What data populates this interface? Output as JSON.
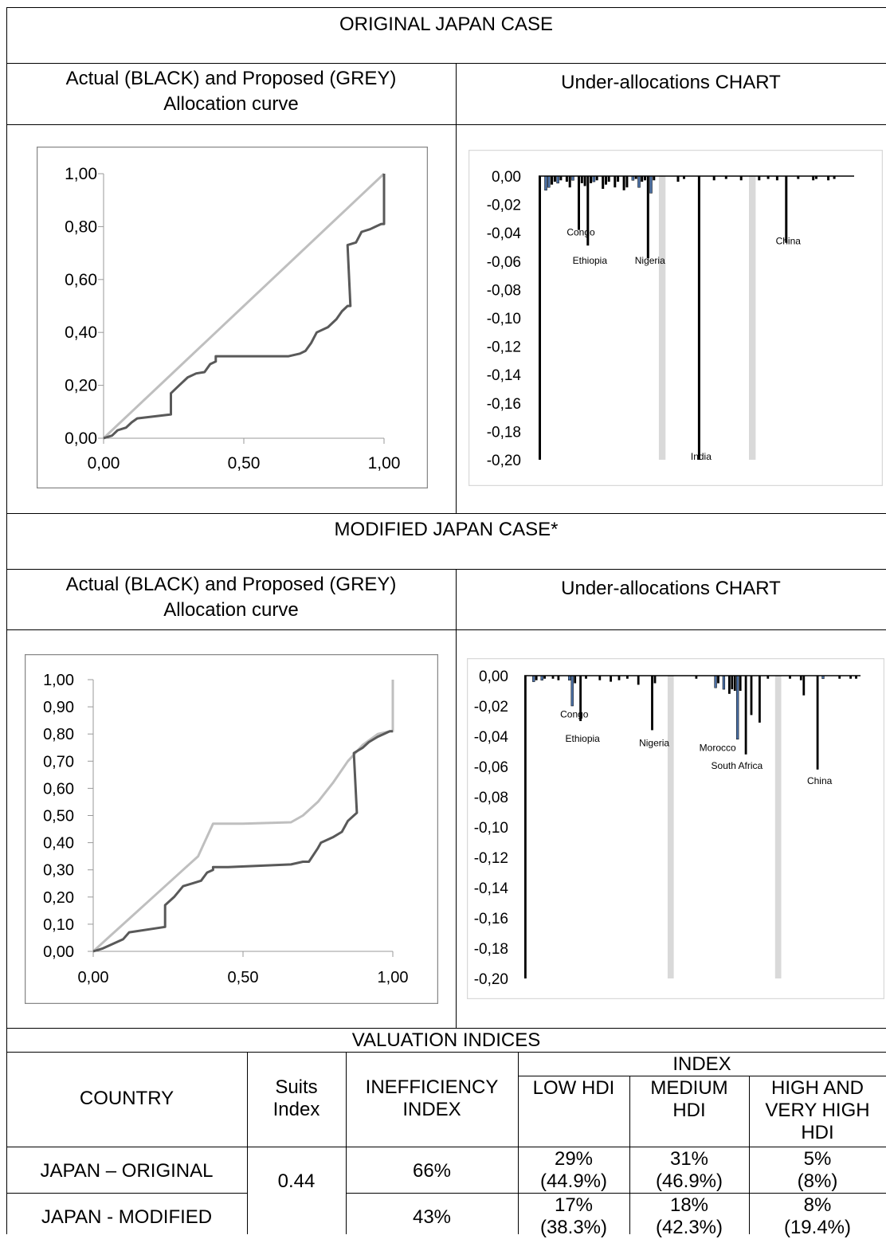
{
  "sections": {
    "original_title": "ORIGINAL JAPAN CASE",
    "modified_title": "MODIFIED JAPAN CASE*",
    "curve_header_line1": "Actual (BLACK) and Proposed (GREY)",
    "curve_header_line2": "Allocation curve",
    "under_header": "Under-allocations CHART",
    "valuation_title": "VALUATION INDICES"
  },
  "colors": {
    "actual": "#595959",
    "proposed": "#bfbfbf",
    "bar_black": "#000000",
    "bar_blue": "#4a6fa5",
    "bar_grey": "#d9d9d9"
  },
  "chart_data": [
    {
      "id": "orig_curve",
      "type": "line",
      "title": "",
      "xlim": [
        0,
        1
      ],
      "ylim": [
        0,
        1
      ],
      "xticks": [
        "0,00",
        "0,50",
        "1,00"
      ],
      "yticks": [
        "0,00",
        "0,20",
        "0,40",
        "0,60",
        "0,80",
        "1,00"
      ],
      "series": [
        {
          "name": "Proposed (GREY)",
          "color": "#bfbfbf",
          "points": [
            [
              0,
              0
            ],
            [
              0.05,
              0.05
            ],
            [
              0.1,
              0.1
            ],
            [
              0.2,
              0.2
            ],
            [
              0.3,
              0.3
            ],
            [
              0.4,
              0.4
            ],
            [
              0.5,
              0.5
            ],
            [
              0.6,
              0.6
            ],
            [
              0.7,
              0.7
            ],
            [
              0.8,
              0.8
            ],
            [
              0.9,
              0.9
            ],
            [
              1,
              1
            ]
          ]
        },
        {
          "name": "Actual (BLACK)",
          "color": "#595959",
          "points": [
            [
              0,
              0
            ],
            [
              0.03,
              0.01
            ],
            [
              0.05,
              0.03
            ],
            [
              0.08,
              0.04
            ],
            [
              0.1,
              0.06
            ],
            [
              0.12,
              0.075
            ],
            [
              0.24,
              0.09
            ],
            [
              0.24,
              0.17
            ],
            [
              0.27,
              0.2
            ],
            [
              0.3,
              0.23
            ],
            [
              0.33,
              0.245
            ],
            [
              0.36,
              0.25
            ],
            [
              0.38,
              0.28
            ],
            [
              0.4,
              0.29
            ],
            [
              0.4,
              0.31
            ],
            [
              0.45,
              0.31
            ],
            [
              0.66,
              0.31
            ],
            [
              0.7,
              0.32
            ],
            [
              0.72,
              0.33
            ],
            [
              0.74,
              0.36
            ],
            [
              0.75,
              0.38
            ],
            [
              0.76,
              0.4
            ],
            [
              0.8,
              0.42
            ],
            [
              0.83,
              0.45
            ],
            [
              0.85,
              0.48
            ],
            [
              0.87,
              0.5
            ],
            [
              0.88,
              0.5
            ],
            [
              0.87,
              0.73
            ],
            [
              0.9,
              0.74
            ],
            [
              0.92,
              0.78
            ],
            [
              0.95,
              0.79
            ],
            [
              0.97,
              0.8
            ],
            [
              0.99,
              0.81
            ],
            [
              1,
              0.81
            ],
            [
              1,
              1
            ]
          ]
        }
      ]
    },
    {
      "id": "orig_bars",
      "type": "bar",
      "title": "",
      "ylim": [
        -0.2,
        0
      ],
      "yticks": [
        "0,00",
        "-0,02",
        "-0,04",
        "-0,06",
        "-0,08",
        "-0,10",
        "-0,12",
        "-0,14",
        "-0,16",
        "-0,18",
        "-0,20"
      ],
      "n_bars": 105,
      "bars": [
        {
          "i": 0,
          "v": -0.2,
          "c": "black"
        },
        {
          "i": 2,
          "v": -0.01,
          "c": "blue"
        },
        {
          "i": 3,
          "v": -0.008,
          "c": "blue"
        },
        {
          "i": 4,
          "v": -0.006,
          "c": "black"
        },
        {
          "i": 5,
          "v": -0.004,
          "c": "black"
        },
        {
          "i": 6,
          "v": -0.005,
          "c": "blue"
        },
        {
          "i": 7,
          "v": -0.003,
          "c": "black"
        },
        {
          "i": 9,
          "v": -0.004,
          "c": "black"
        },
        {
          "i": 10,
          "v": -0.008,
          "c": "black"
        },
        {
          "i": 11,
          "v": -0.003,
          "c": "blue"
        },
        {
          "i": 13,
          "v": -0.038,
          "c": "black"
        },
        {
          "i": 14,
          "v": -0.005,
          "c": "black"
        },
        {
          "i": 15,
          "v": -0.007,
          "c": "black"
        },
        {
          "i": 16,
          "v": -0.049,
          "c": "black"
        },
        {
          "i": 17,
          "v": -0.005,
          "c": "black"
        },
        {
          "i": 18,
          "v": -0.004,
          "c": "blue"
        },
        {
          "i": 19,
          "v": -0.003,
          "c": "black"
        },
        {
          "i": 21,
          "v": -0.009,
          "c": "black"
        },
        {
          "i": 22,
          "v": -0.006,
          "c": "black"
        },
        {
          "i": 23,
          "v": -0.004,
          "c": "black"
        },
        {
          "i": 25,
          "v": -0.008,
          "c": "black"
        },
        {
          "i": 26,
          "v": -0.004,
          "c": "black"
        },
        {
          "i": 28,
          "v": -0.01,
          "c": "black"
        },
        {
          "i": 29,
          "v": -0.008,
          "c": "black"
        },
        {
          "i": 31,
          "v": -0.003,
          "c": "blue"
        },
        {
          "i": 32,
          "v": -0.002,
          "c": "black"
        },
        {
          "i": 33,
          "v": -0.008,
          "c": "blue"
        },
        {
          "i": 34,
          "v": -0.004,
          "c": "black"
        },
        {
          "i": 35,
          "v": -0.003,
          "c": "black"
        },
        {
          "i": 36,
          "v": -0.058,
          "c": "black"
        },
        {
          "i": 37,
          "v": -0.012,
          "c": "blue"
        },
        {
          "i": 38,
          "v": -0.003,
          "c": "black"
        },
        {
          "i": 40,
          "v": -0.2,
          "c": "grey"
        },
        {
          "i": 46,
          "v": -0.004,
          "c": "black"
        },
        {
          "i": 48,
          "v": -0.002,
          "c": "black"
        },
        {
          "i": 53,
          "v": -0.2,
          "c": "black"
        },
        {
          "i": 58,
          "v": -0.003,
          "c": "black"
        },
        {
          "i": 62,
          "v": -0.002,
          "c": "black"
        },
        {
          "i": 67,
          "v": -0.003,
          "c": "black"
        },
        {
          "i": 70,
          "v": -0.2,
          "c": "grey"
        },
        {
          "i": 73,
          "v": -0.003,
          "c": "black"
        },
        {
          "i": 76,
          "v": -0.002,
          "c": "black"
        },
        {
          "i": 79,
          "v": -0.003,
          "c": "black"
        },
        {
          "i": 82,
          "v": -0.047,
          "c": "black"
        },
        {
          "i": 86,
          "v": -0.002,
          "c": "black"
        },
        {
          "i": 91,
          "v": -0.003,
          "c": "black"
        },
        {
          "i": 92,
          "v": -0.002,
          "c": "black"
        },
        {
          "i": 96,
          "v": -0.003,
          "c": "black"
        },
        {
          "i": 98,
          "v": -0.002,
          "c": "black"
        }
      ],
      "labels": [
        {
          "text": "Congo",
          "i": 13,
          "v": -0.038
        },
        {
          "text": "Ethiopia",
          "i": 16,
          "v": -0.058
        },
        {
          "text": "Nigeria",
          "i": 36,
          "v": -0.058
        },
        {
          "text": "India",
          "i": 53,
          "v": -0.196
        },
        {
          "text": "China",
          "i": 82,
          "v": -0.044
        }
      ]
    },
    {
      "id": "mod_curve",
      "type": "line",
      "title": "",
      "xlim": [
        0,
        1
      ],
      "ylim": [
        0,
        1
      ],
      "xticks": [
        "0,00",
        "0,50",
        "1,00"
      ],
      "yticks": [
        "0,00",
        "0,10",
        "0,20",
        "0,30",
        "0,40",
        "0,50",
        "0,60",
        "0,70",
        "0,80",
        "0,90",
        "1,00"
      ],
      "series": [
        {
          "name": "Proposed (GREY)",
          "color": "#bfbfbf",
          "points": [
            [
              0,
              0
            ],
            [
              0.05,
              0.05
            ],
            [
              0.1,
              0.1
            ],
            [
              0.2,
              0.2
            ],
            [
              0.3,
              0.3
            ],
            [
              0.35,
              0.35
            ],
            [
              0.4,
              0.47
            ],
            [
              0.5,
              0.47
            ],
            [
              0.66,
              0.475
            ],
            [
              0.7,
              0.5
            ],
            [
              0.75,
              0.55
            ],
            [
              0.8,
              0.62
            ],
            [
              0.85,
              0.7
            ],
            [
              0.9,
              0.76
            ],
            [
              0.95,
              0.8
            ],
            [
              0.99,
              0.81
            ],
            [
              1,
              0.81
            ],
            [
              1,
              1
            ]
          ]
        },
        {
          "name": "Actual (BLACK)",
          "color": "#595959",
          "points": [
            [
              0,
              0
            ],
            [
              0.03,
              0.01
            ],
            [
              0.05,
              0.02
            ],
            [
              0.08,
              0.035
            ],
            [
              0.1,
              0.045
            ],
            [
              0.12,
              0.07
            ],
            [
              0.24,
              0.09
            ],
            [
              0.24,
              0.17
            ],
            [
              0.27,
              0.2
            ],
            [
              0.3,
              0.24
            ],
            [
              0.33,
              0.25
            ],
            [
              0.36,
              0.26
            ],
            [
              0.38,
              0.29
            ],
            [
              0.4,
              0.3
            ],
            [
              0.4,
              0.31
            ],
            [
              0.45,
              0.31
            ],
            [
              0.66,
              0.32
            ],
            [
              0.7,
              0.33
            ],
            [
              0.72,
              0.33
            ],
            [
              0.75,
              0.38
            ],
            [
              0.76,
              0.4
            ],
            [
              0.8,
              0.42
            ],
            [
              0.83,
              0.44
            ],
            [
              0.85,
              0.48
            ],
            [
              0.87,
              0.5
            ],
            [
              0.88,
              0.51
            ],
            [
              0.87,
              0.73
            ],
            [
              0.9,
              0.75
            ],
            [
              0.92,
              0.77
            ],
            [
              0.95,
              0.79
            ],
            [
              0.97,
              0.8
            ],
            [
              0.99,
              0.81
            ],
            [
              1,
              0.81
            ]
          ]
        }
      ]
    },
    {
      "id": "mod_bars",
      "type": "bar",
      "title": "",
      "ylim": [
        -0.2,
        0
      ],
      "yticks": [
        "0,00",
        "-0,02",
        "-0,04",
        "-0,06",
        "-0,08",
        "-0,10",
        "-0,12",
        "-0,14",
        "-0,16",
        "-0,18",
        "-0,20"
      ],
      "n_bars": 122,
      "bars": [
        {
          "i": 0,
          "v": -0.2,
          "c": "black"
        },
        {
          "i": 3,
          "v": -0.004,
          "c": "blue"
        },
        {
          "i": 4,
          "v": -0.003,
          "c": "black"
        },
        {
          "i": 6,
          "v": -0.003,
          "c": "blue"
        },
        {
          "i": 7,
          "v": -0.002,
          "c": "black"
        },
        {
          "i": 10,
          "v": -0.002,
          "c": "black"
        },
        {
          "i": 12,
          "v": -0.003,
          "c": "black"
        },
        {
          "i": 16,
          "v": -0.003,
          "c": "blue"
        },
        {
          "i": 17,
          "v": -0.02,
          "c": "blue"
        },
        {
          "i": 18,
          "v": -0.005,
          "c": "black"
        },
        {
          "i": 20,
          "v": -0.03,
          "c": "black"
        },
        {
          "i": 22,
          "v": -0.002,
          "c": "black"
        },
        {
          "i": 27,
          "v": -0.003,
          "c": "black"
        },
        {
          "i": 31,
          "v": -0.004,
          "c": "black"
        },
        {
          "i": 34,
          "v": -0.003,
          "c": "black"
        },
        {
          "i": 37,
          "v": -0.002,
          "c": "black"
        },
        {
          "i": 41,
          "v": -0.006,
          "c": "black"
        },
        {
          "i": 46,
          "v": -0.036,
          "c": "black"
        },
        {
          "i": 47,
          "v": -0.005,
          "c": "black"
        },
        {
          "i": 52,
          "v": -0.2,
          "c": "grey"
        },
        {
          "i": 62,
          "v": -0.002,
          "c": "black"
        },
        {
          "i": 69,
          "v": -0.008,
          "c": "blue"
        },
        {
          "i": 70,
          "v": -0.005,
          "c": "black"
        },
        {
          "i": 72,
          "v": -0.009,
          "c": "blue"
        },
        {
          "i": 74,
          "v": -0.012,
          "c": "black"
        },
        {
          "i": 75,
          "v": -0.009,
          "c": "black"
        },
        {
          "i": 76,
          "v": -0.01,
          "c": "black"
        },
        {
          "i": 77,
          "v": -0.042,
          "c": "blue"
        },
        {
          "i": 78,
          "v": -0.01,
          "c": "black"
        },
        {
          "i": 80,
          "v": -0.052,
          "c": "black"
        },
        {
          "i": 82,
          "v": -0.026,
          "c": "black"
        },
        {
          "i": 85,
          "v": -0.031,
          "c": "black"
        },
        {
          "i": 88,
          "v": -0.002,
          "c": "black"
        },
        {
          "i": 91,
          "v": -0.2,
          "c": "grey"
        },
        {
          "i": 96,
          "v": -0.002,
          "c": "black"
        },
        {
          "i": 100,
          "v": -0.003,
          "c": "black"
        },
        {
          "i": 101,
          "v": -0.013,
          "c": "black"
        },
        {
          "i": 106,
          "v": -0.062,
          "c": "black"
        },
        {
          "i": 108,
          "v": -0.002,
          "c": "blue"
        },
        {
          "i": 114,
          "v": -0.002,
          "c": "black"
        },
        {
          "i": 118,
          "v": -0.002,
          "c": "black"
        },
        {
          "i": 120,
          "v": -0.002,
          "c": "black"
        }
      ],
      "labels": [
        {
          "text": "Congo",
          "i": 17,
          "v": -0.024
        },
        {
          "text": "Ethiopia",
          "i": 20,
          "v": -0.04
        },
        {
          "text": "Nigeria",
          "i": 46,
          "v": -0.043
        },
        {
          "text": "Morocco",
          "i": 69,
          "v": -0.046
        },
        {
          "text": "South Africa",
          "i": 76,
          "v": -0.058
        },
        {
          "text": "China",
          "i": 106,
          "v": -0.068
        }
      ]
    }
  ],
  "table": {
    "col_country": "COUNTRY",
    "col_suits_line1": "Suits",
    "col_suits_line2": "Index",
    "col_ineff_line1": "INEFFICIENCY",
    "col_ineff_line2": "INDEX",
    "col_index": "INDEX",
    "col_low_hdi": "LOW HDI",
    "col_medium_line1": "MEDIUM",
    "col_medium_line2": "HDI",
    "col_high_line1": "HIGH AND",
    "col_high_line2": "VERY HIGH",
    "col_high_line3": "HDI",
    "suits_value": "0.44",
    "rows": [
      {
        "country": "JAPAN – ORIGINAL",
        "inefficiency": "66%",
        "low": "29%",
        "low_sub": "(44.9%)",
        "medium": "31%",
        "medium_sub": "(46.9%)",
        "high": "5%",
        "high_sub": "(8%)"
      },
      {
        "country": "JAPAN - MODIFIED",
        "inefficiency": "43%",
        "low": "17%",
        "low_sub": "(38.3%)",
        "medium": "18%",
        "medium_sub": "(42.3%)",
        "high": "8%",
        "high_sub": "(19.4%)"
      }
    ]
  }
}
